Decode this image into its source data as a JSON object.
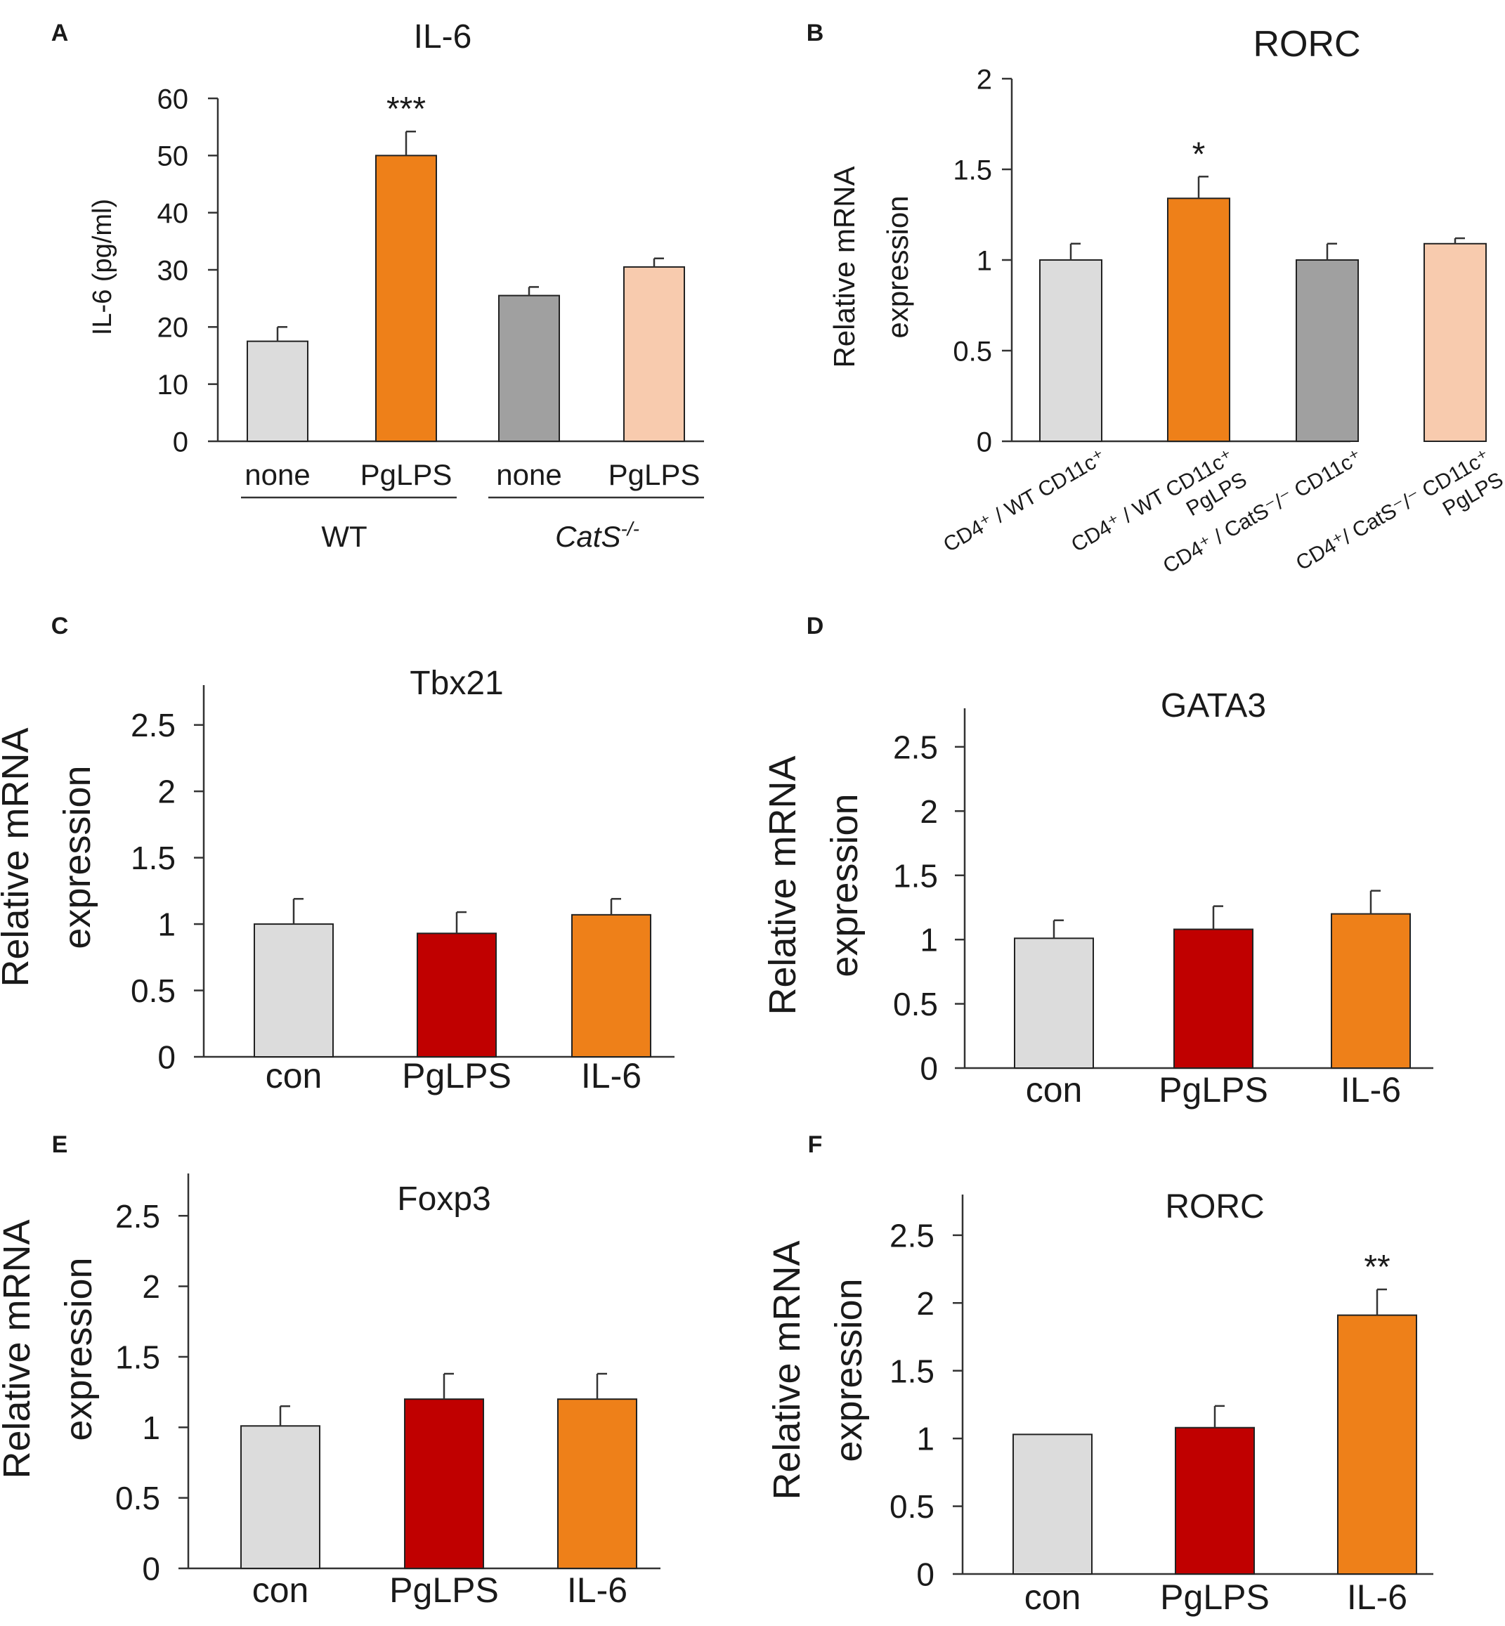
{
  "chart_data": [
    {
      "panel": "A",
      "type": "bar",
      "title": "IL-6",
      "ylabel": "IL-6 (pg/ml)",
      "ylim": [
        0,
        60
      ],
      "yticks": [
        "0",
        "10",
        "20",
        "30",
        "40",
        "50",
        "60"
      ],
      "categories": [
        "none",
        "PgLPS",
        "none",
        "PgLPS"
      ],
      "groups": [
        {
          "label": "WT",
          "italic": false,
          "superscript": ""
        },
        {
          "label": "CatS",
          "italic": true,
          "superscript": "-/-"
        }
      ],
      "values": [
        17.5,
        50,
        25.5,
        30.5
      ],
      "errors": [
        2.5,
        4.2,
        1.5,
        1.5
      ],
      "colors": [
        "#dcdcdc",
        "#ee8019",
        "#a0a0a0",
        "#f8cbae"
      ],
      "annotations": [
        "",
        "***",
        "",
        ""
      ]
    },
    {
      "panel": "B",
      "type": "bar",
      "title": "RORC",
      "ylabel": [
        "Relative mRNA",
        "expression"
      ],
      "ylim": [
        0,
        2
      ],
      "yticks": [
        "0",
        "0.5",
        "1",
        "1.5",
        "2"
      ],
      "categories": [
        [
          "CD4⁺ / WT CD11c⁺"
        ],
        [
          "CD4⁺ / WT CD11c⁺",
          "PgLPS"
        ],
        [
          "CD4⁺ / CatS⁻/⁻ CD11c⁺"
        ],
        [
          "CD4⁺/ CatS⁻/⁻ CD11c⁺",
          "PgLPS"
        ]
      ],
      "values": [
        1.0,
        1.34,
        1.0,
        1.09
      ],
      "errors": [
        0.09,
        0.12,
        0.09,
        0.03
      ],
      "colors": [
        "#dcdcdc",
        "#ee8019",
        "#a0a0a0",
        "#f8cbae"
      ],
      "annotations": [
        "",
        "*",
        "",
        ""
      ]
    },
    {
      "panel": "C",
      "type": "bar",
      "title": "Tbx21",
      "ylabel": [
        "Relative mRNA",
        "expression"
      ],
      "ylim": [
        0,
        2.8
      ],
      "yticks": [
        "0",
        "0.5",
        "1",
        "1.5",
        "2",
        "2.5"
      ],
      "categories": [
        "con",
        "PgLPS",
        "IL-6"
      ],
      "values": [
        1.0,
        0.93,
        1.07
      ],
      "errors": [
        0.19,
        0.16,
        0.12
      ],
      "colors": [
        "#dcdcdc",
        "#c00000",
        "#ee8019"
      ],
      "annotations": [
        "",
        "",
        ""
      ]
    },
    {
      "panel": "D",
      "type": "bar",
      "title": "GATA3",
      "ylabel": [
        "Relative mRNA",
        "expression"
      ],
      "ylim": [
        0,
        2.8
      ],
      "yticks": [
        "0",
        "0.5",
        "1",
        "1.5",
        "2",
        "2.5"
      ],
      "categories": [
        "con",
        "PgLPS",
        "IL-6"
      ],
      "values": [
        1.01,
        1.08,
        1.2
      ],
      "errors": [
        0.14,
        0.18,
        0.18
      ],
      "colors": [
        "#dcdcdc",
        "#c00000",
        "#ee8019"
      ],
      "annotations": [
        "",
        "",
        ""
      ]
    },
    {
      "panel": "E",
      "type": "bar",
      "title": "Foxp3",
      "ylabel": [
        "Relative mRNA",
        "expression"
      ],
      "ylim": [
        0,
        2.8
      ],
      "yticks": [
        "0",
        "0.5",
        "1",
        "1.5",
        "2",
        "2.5"
      ],
      "categories": [
        "con",
        "PgLPS",
        "IL-6"
      ],
      "values": [
        1.01,
        1.2,
        1.2
      ],
      "errors": [
        0.14,
        0.18,
        0.18
      ],
      "colors": [
        "#dcdcdc",
        "#c00000",
        "#ee8019"
      ],
      "annotations": [
        "",
        "",
        ""
      ]
    },
    {
      "panel": "F",
      "type": "bar",
      "title": "RORC",
      "ylabel": [
        "Relative mRNA",
        "expression"
      ],
      "ylim": [
        0,
        2.8
      ],
      "yticks": [
        "0",
        "0.5",
        "1",
        "1.5",
        "2",
        "2.5"
      ],
      "categories": [
        "con",
        "PgLPS",
        "IL-6"
      ],
      "values": [
        1.03,
        1.08,
        1.91
      ],
      "errors": [
        0.0,
        0.16,
        0.19
      ],
      "colors": [
        "#dcdcdc",
        "#c00000",
        "#ee8019"
      ],
      "annotations": [
        "",
        "",
        "**"
      ]
    }
  ]
}
